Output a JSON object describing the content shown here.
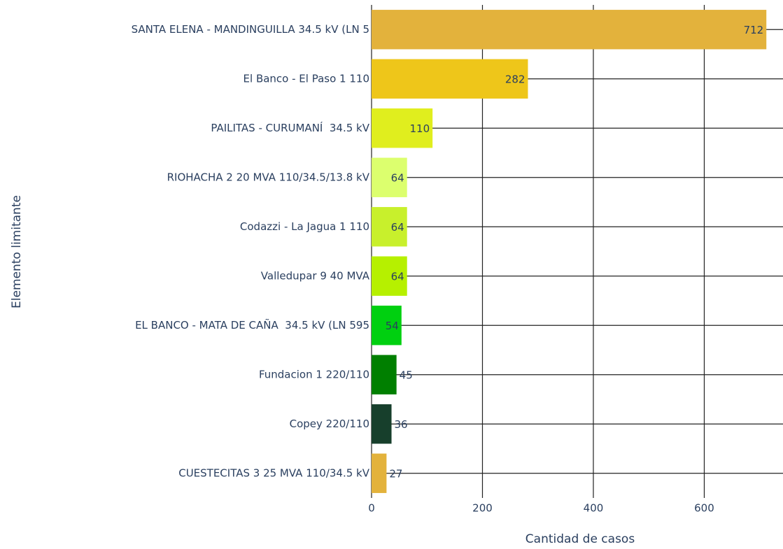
{
  "chart_data": {
    "type": "barh",
    "ylabel": "Elemento limitante",
    "xlabel": "Cantidad de casos",
    "categories": [
      "SANTA ELENA - MANDINGUILLA 34.5 kV (LN 5",
      "El Banco - El Paso 1 110",
      "PAILITAS - CURUMANÍ  34.5 kV",
      "RIOHACHA 2 20 MVA 110/34.5/13.8 kV",
      "Codazzi - La Jagua 1 110",
      "Valledupar 9 40 MVA",
      "EL BANCO - MATA DE CAÑA  34.5 kV (LN 595",
      "Fundacion 1 220/110",
      "Copey 220/110",
      "CUESTECITAS 3 25 MVA 110/34.5 kV"
    ],
    "values": [
      712,
      282,
      110,
      64,
      64,
      64,
      54,
      45,
      36,
      27
    ],
    "colors": [
      "#e3b23c",
      "#eec61a",
      "#e0ee1e",
      "#dcff6e",
      "#c8f02c",
      "#b6f000",
      "#00d010",
      "#007f00",
      "#173f2c",
      "#e3b23c"
    ],
    "xlim": [
      0,
      742
    ],
    "xticks": [
      0,
      200,
      400,
      600
    ],
    "grid": true
  }
}
